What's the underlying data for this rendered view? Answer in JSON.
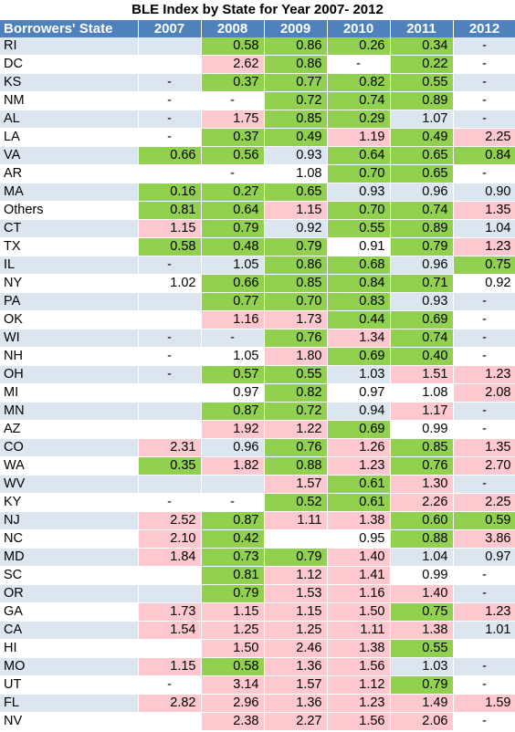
{
  "chart_data": {
    "type": "table",
    "title": "BLE Index by State for Year 2007- 2012",
    "columns": [
      "Borrowers' State",
      "2007",
      "2008",
      "2009",
      "2010",
      "2011",
      "2012"
    ],
    "colors": {
      "header": "#4f81bd",
      "stripe": "#dce6f1",
      "green": "#92d050",
      "pink": "#ffc7ce",
      "white": "#ffffff"
    },
    "rows": [
      {
        "state": "RI",
        "values": [
          "",
          "0.58",
          "0.86",
          "0.26",
          "0.34",
          "-"
        ],
        "fills": [
          "",
          "g",
          "g",
          "g",
          "g",
          ""
        ]
      },
      {
        "state": "DC",
        "values": [
          "",
          "2.62",
          "0.86",
          "-",
          "0.22",
          "-"
        ],
        "fills": [
          "",
          "p",
          "g",
          "w",
          "g",
          ""
        ]
      },
      {
        "state": "KS",
        "values": [
          "-",
          "0.37",
          "0.77",
          "0.82",
          "0.55",
          "-"
        ],
        "fills": [
          "",
          "g",
          "g",
          "g",
          "g",
          ""
        ]
      },
      {
        "state": "NM",
        "values": [
          "-",
          "-",
          "0.72",
          "0.74",
          "0.89",
          "-"
        ],
        "fills": [
          "",
          "",
          "g",
          "g",
          "g",
          ""
        ]
      },
      {
        "state": "AL",
        "values": [
          "-",
          "1.75",
          "0.85",
          "0.29",
          "1.07",
          "-"
        ],
        "fills": [
          "",
          "p",
          "g",
          "g",
          "",
          ""
        ]
      },
      {
        "state": "LA",
        "values": [
          "-",
          "0.37",
          "0.49",
          "1.19",
          "0.49",
          "2.25"
        ],
        "fills": [
          "",
          "g",
          "g",
          "p",
          "g",
          "p"
        ]
      },
      {
        "state": "VA",
        "values": [
          "0.66",
          "0.56",
          "0.93",
          "0.64",
          "0.65",
          "0.84"
        ],
        "fills": [
          "g",
          "g",
          "",
          "g",
          "g",
          "g"
        ]
      },
      {
        "state": "AR",
        "values": [
          "",
          "-",
          "1.08",
          "0.70",
          "0.65",
          "-"
        ],
        "fills": [
          "",
          "",
          "",
          "g",
          "g",
          ""
        ]
      },
      {
        "state": "MA",
        "values": [
          "0.16",
          "0.27",
          "0.65",
          "0.93",
          "0.96",
          "0.90"
        ],
        "fills": [
          "g",
          "g",
          "g",
          "",
          "",
          ""
        ]
      },
      {
        "state": "Others",
        "values": [
          "0.81",
          "0.64",
          "1.15",
          "0.70",
          "0.74",
          "1.35"
        ],
        "fills": [
          "g",
          "g",
          "p",
          "g",
          "g",
          "p"
        ]
      },
      {
        "state": "CT",
        "values": [
          "1.15",
          "0.79",
          "0.92",
          "0.55",
          "0.89",
          "1.04"
        ],
        "fills": [
          "p",
          "g",
          "",
          "g",
          "g",
          ""
        ]
      },
      {
        "state": "TX",
        "values": [
          "0.58",
          "0.48",
          "0.79",
          "0.91",
          "0.79",
          "1.23"
        ],
        "fills": [
          "g",
          "g",
          "g",
          "w",
          "g",
          "p"
        ]
      },
      {
        "state": "IL",
        "values": [
          "-",
          "1.05",
          "0.86",
          "0.68",
          "0.96",
          "0.75"
        ],
        "fills": [
          "",
          "",
          "g",
          "g",
          "",
          "g"
        ]
      },
      {
        "state": "NY",
        "values": [
          "1.02",
          "0.66",
          "0.85",
          "0.84",
          "0.71",
          "0.92"
        ],
        "fills": [
          "",
          "g",
          "g",
          "g",
          "g",
          ""
        ]
      },
      {
        "state": "PA",
        "values": [
          "",
          "0.77",
          "0.70",
          "0.83",
          "0.93",
          "-"
        ],
        "fills": [
          "",
          "g",
          "g",
          "g",
          "",
          ""
        ]
      },
      {
        "state": "OK",
        "values": [
          "",
          "1.16",
          "1.73",
          "0.44",
          "0.69",
          "-"
        ],
        "fills": [
          "",
          "p",
          "p",
          "g",
          "g",
          ""
        ]
      },
      {
        "state": "WI",
        "values": [
          "-",
          "-",
          "0.76",
          "1.34",
          "0.74",
          "-"
        ],
        "fills": [
          "",
          "",
          "g",
          "p",
          "g",
          ""
        ]
      },
      {
        "state": "NH",
        "values": [
          "-",
          "1.05",
          "1.80",
          "0.69",
          "0.40",
          "-"
        ],
        "fills": [
          "",
          "",
          "p",
          "g",
          "g",
          ""
        ]
      },
      {
        "state": "OH",
        "values": [
          "-",
          "0.57",
          "0.55",
          "1.03",
          "1.51",
          "1.23"
        ],
        "fills": [
          "",
          "g",
          "g",
          "",
          "p",
          "p"
        ]
      },
      {
        "state": "MI",
        "values": [
          "",
          "0.97",
          "0.82",
          "0.97",
          "1.08",
          "2.08"
        ],
        "fills": [
          "",
          "",
          "g",
          "",
          "",
          "p"
        ]
      },
      {
        "state": "MN",
        "values": [
          "",
          "0.87",
          "0.72",
          "0.94",
          "1.17",
          "-"
        ],
        "fills": [
          "",
          "g",
          "g",
          "",
          "p",
          ""
        ]
      },
      {
        "state": "AZ",
        "values": [
          "",
          "1.92",
          "1.22",
          "0.69",
          "0.99",
          "-"
        ],
        "fills": [
          "",
          "p",
          "p",
          "g",
          "",
          ""
        ]
      },
      {
        "state": "CO",
        "values": [
          "2.31",
          "0.96",
          "0.76",
          "1.26",
          "0.85",
          "1.35"
        ],
        "fills": [
          "p",
          "",
          "g",
          "p",
          "g",
          "p"
        ]
      },
      {
        "state": "WA",
        "values": [
          "0.35",
          "1.82",
          "0.88",
          "1.23",
          "0.76",
          "2.70"
        ],
        "fills": [
          "g",
          "p",
          "g",
          "p",
          "g",
          "p"
        ]
      },
      {
        "state": "WV",
        "values": [
          "",
          "",
          "1.57",
          "0.61",
          "1.30",
          "-"
        ],
        "fills": [
          "",
          "",
          "p",
          "g",
          "p",
          ""
        ]
      },
      {
        "state": "KY",
        "values": [
          "-",
          "-",
          "0.52",
          "0.61",
          "2.26",
          "2.25"
        ],
        "fills": [
          "",
          "",
          "g",
          "g",
          "p",
          "p"
        ]
      },
      {
        "state": "NJ",
        "values": [
          "2.52",
          "0.87",
          "1.11",
          "1.38",
          "0.60",
          "0.59"
        ],
        "fills": [
          "p",
          "g",
          "p",
          "p",
          "g",
          "g"
        ]
      },
      {
        "state": "NC",
        "values": [
          "2.10",
          "0.42",
          "",
          "0.95",
          "0.88",
          "3.86"
        ],
        "fills": [
          "p",
          "g",
          "",
          "",
          "g",
          "p"
        ]
      },
      {
        "state": "MD",
        "values": [
          "1.84",
          "0.73",
          "0.79",
          "1.40",
          "1.04",
          "0.97"
        ],
        "fills": [
          "p",
          "g",
          "g",
          "p",
          "",
          ""
        ]
      },
      {
        "state": "SC",
        "values": [
          "",
          "0.81",
          "1.12",
          "1.41",
          "0.99",
          "-"
        ],
        "fills": [
          "",
          "g",
          "p",
          "p",
          "w",
          ""
        ]
      },
      {
        "state": "OR",
        "values": [
          "",
          "0.79",
          "1.53",
          "1.16",
          "1.40",
          "-"
        ],
        "fills": [
          "",
          "g",
          "p",
          "p",
          "p",
          ""
        ]
      },
      {
        "state": "GA",
        "values": [
          "1.73",
          "1.15",
          "1.15",
          "1.50",
          "0.75",
          "1.23"
        ],
        "fills": [
          "p",
          "p",
          "p",
          "p",
          "g",
          "p"
        ]
      },
      {
        "state": "CA",
        "values": [
          "1.54",
          "1.25",
          "1.25",
          "1.11",
          "1.38",
          "1.01"
        ],
        "fills": [
          "p",
          "p",
          "p",
          "p",
          "p",
          ""
        ]
      },
      {
        "state": "HI",
        "values": [
          "",
          "1.50",
          "2.46",
          "1.38",
          "0.55",
          ""
        ],
        "fills": [
          "",
          "p",
          "p",
          "p",
          "g",
          ""
        ]
      },
      {
        "state": "MO",
        "values": [
          "1.15",
          "0.58",
          "1.36",
          "1.56",
          "1.03",
          "-"
        ],
        "fills": [
          "p",
          "g",
          "p",
          "p",
          "",
          ""
        ]
      },
      {
        "state": "UT",
        "values": [
          "-",
          "3.14",
          "1.57",
          "1.12",
          "0.79",
          "-"
        ],
        "fills": [
          "",
          "p",
          "p",
          "p",
          "g",
          ""
        ]
      },
      {
        "state": "FL",
        "values": [
          "2.82",
          "2.96",
          "1.36",
          "1.23",
          "1.49",
          "1.59"
        ],
        "fills": [
          "p",
          "p",
          "p",
          "p",
          "p",
          "p"
        ]
      },
      {
        "state": "NV",
        "values": [
          "",
          "2.38",
          "2.27",
          "1.56",
          "2.06",
          "-"
        ],
        "fills": [
          "",
          "p",
          "p",
          "p",
          "p",
          ""
        ]
      }
    ]
  }
}
